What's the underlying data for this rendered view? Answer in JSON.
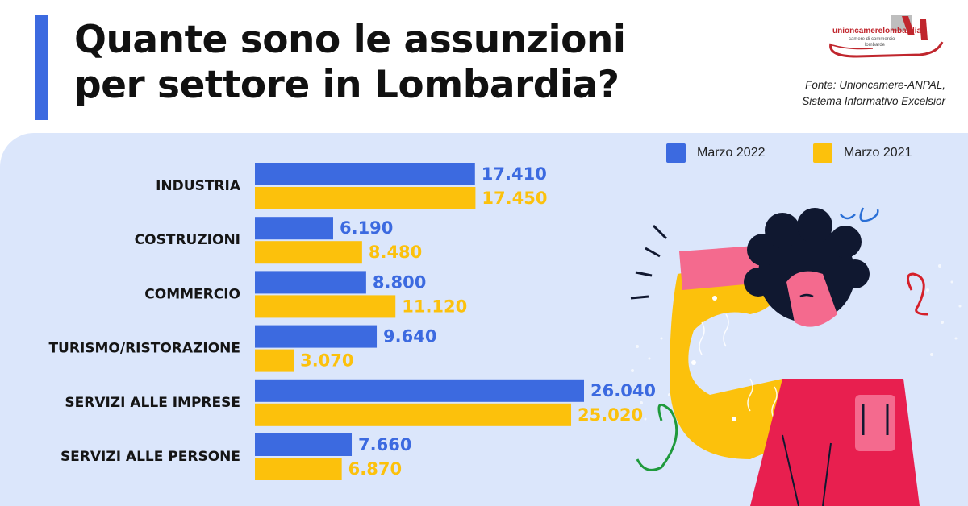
{
  "header": {
    "title_line1": "Quante sono le assunzioni",
    "title_line2": "per settore in Lombardia?",
    "logo_text": "unioncamerelombardia",
    "logo_sub1": "camere di commercio",
    "logo_sub2": "lombarde",
    "source_line1": "Fonte: Unioncamere-ANPAL,",
    "source_line2": "Sistema Informativo Excelsior"
  },
  "colors": {
    "series_2022": "#3c6ae0",
    "series_2021": "#fcc10c",
    "panel": "#dbe6fb",
    "accent": "#3c6ae0"
  },
  "chart_data": {
    "type": "bar",
    "orientation": "horizontal",
    "categories": [
      "INDUSTRIA",
      "COSTRUZIONI",
      "COMMERCIO",
      "TURISMO/RISTORAZIONE",
      "SERVIZI ALLE IMPRESE",
      "SERVIZI ALLE PERSONE"
    ],
    "series": [
      {
        "name": "Marzo 2022",
        "values": [
          17410,
          6190,
          8800,
          9640,
          26040,
          7660
        ],
        "labels": [
          "17.410",
          "6.190",
          "8.800",
          "9.640",
          "26.040",
          "7.660"
        ]
      },
      {
        "name": "Marzo 2021",
        "values": [
          17450,
          8480,
          11120,
          3070,
          25020,
          6870
        ],
        "labels": [
          "17.450",
          "8.480",
          "11.120",
          "3.070",
          "25.020",
          "6.870"
        ]
      }
    ],
    "legend_position": "top-right",
    "grid": false
  }
}
